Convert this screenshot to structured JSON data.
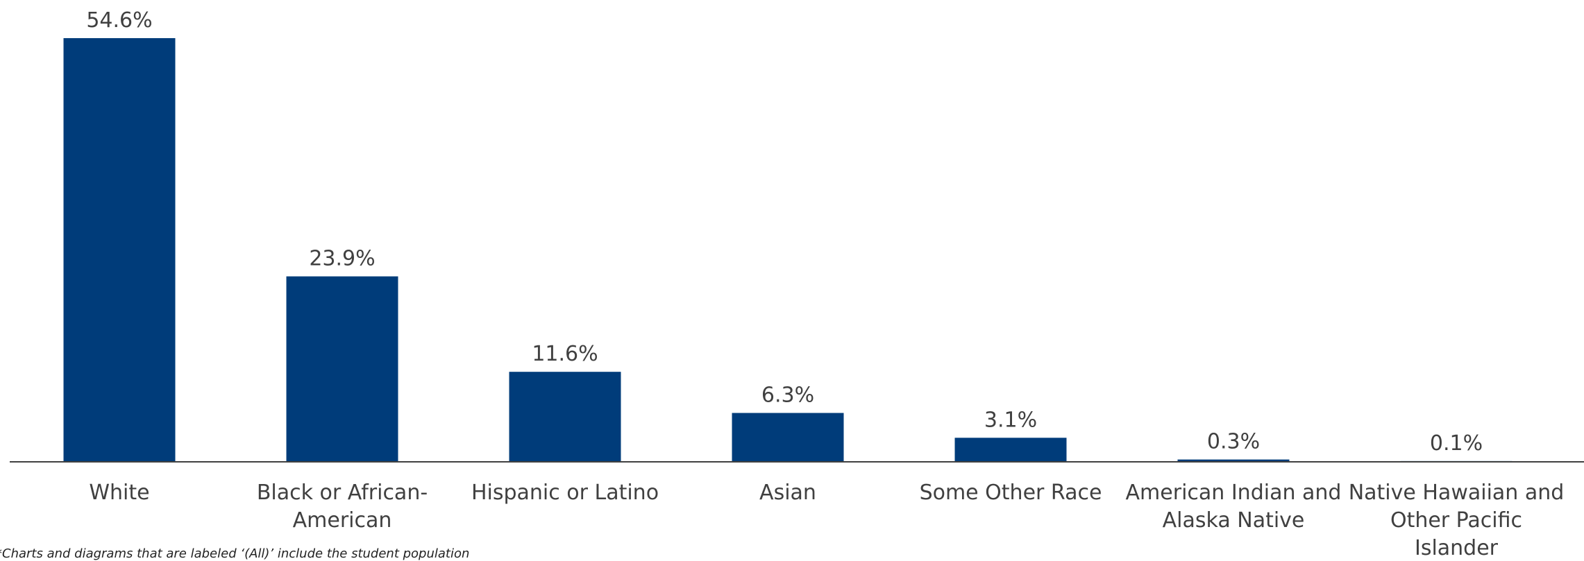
{
  "chart_data": {
    "type": "bar",
    "categories": [
      [
        "White"
      ],
      [
        "Black or African-",
        "American"
      ],
      [
        "Hispanic or Latino"
      ],
      [
        "Asian"
      ],
      [
        "Some Other Race"
      ],
      [
        "American Indian and",
        "Alaska Native"
      ],
      [
        "Native Hawaiian and",
        "Other Pacific",
        "Islander"
      ]
    ],
    "values": [
      54.6,
      23.9,
      11.6,
      6.3,
      3.1,
      0.3,
      0.1
    ],
    "value_labels": [
      "54.6%",
      "23.9%",
      "11.6%",
      "6.3%",
      "3.1%",
      "0.3%",
      "0.1%"
    ],
    "bar_color": "#003C7A",
    "axis_color": "#404040",
    "ylim": [
      0,
      54.6
    ],
    "grid": false,
    "legend": "none"
  },
  "footnote": "*Charts and diagrams that are labeled ‘(All)’ include the student population"
}
